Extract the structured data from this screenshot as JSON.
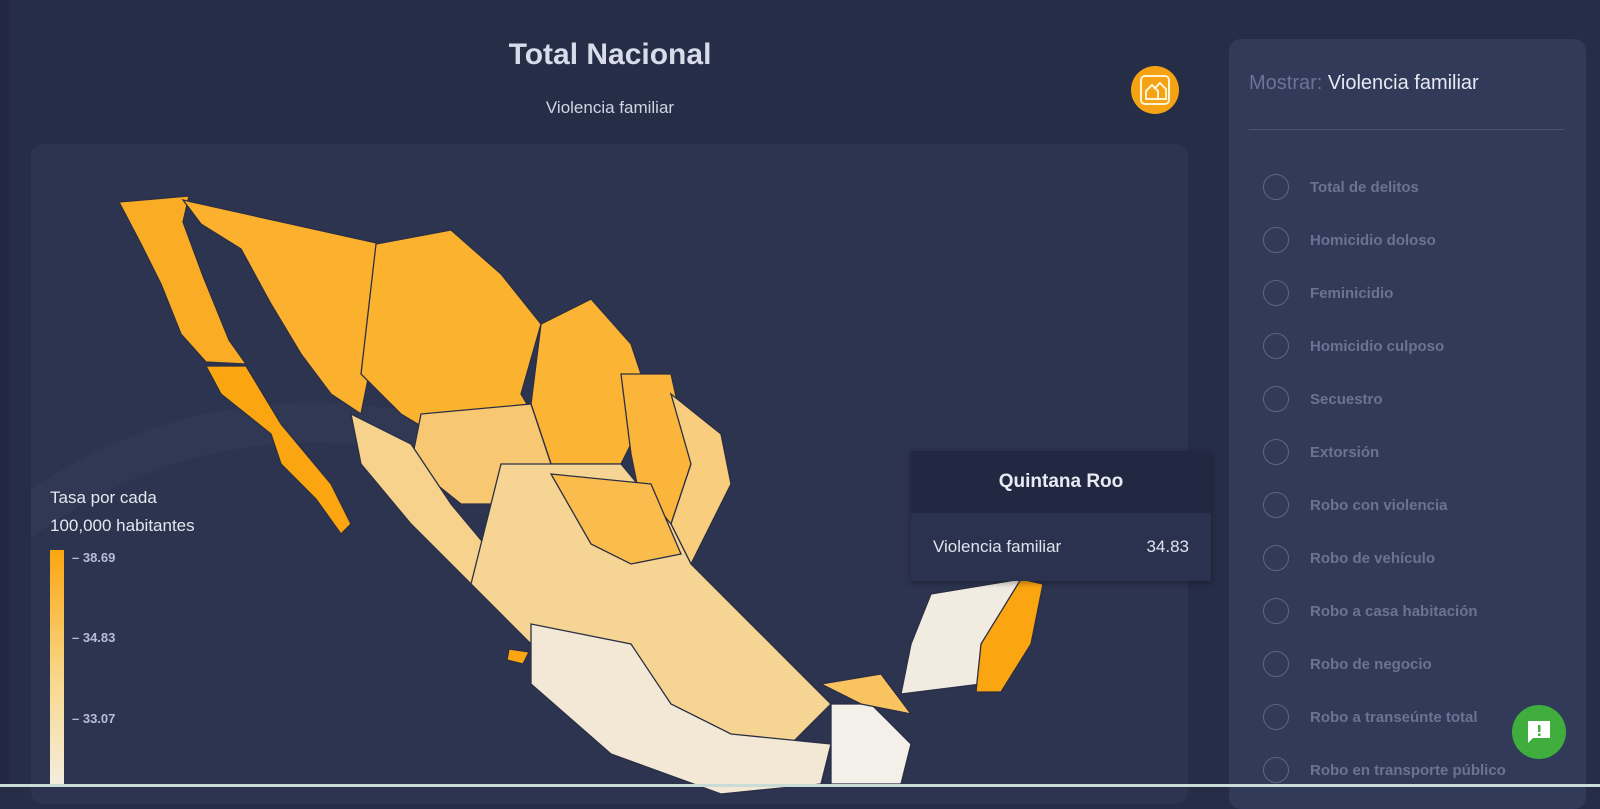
{
  "header": {
    "title": "Total Nacional",
    "subtitle": "Violencia familiar",
    "badge_icon": "family-violence-icon"
  },
  "legend": {
    "title_line1": "Tasa por cada",
    "title_line2": "100,000 habitantes",
    "ticks": [
      "38.69",
      "34.83",
      "33.07"
    ],
    "color_high": "#fba611",
    "color_low": "#f4ede0"
  },
  "tooltip": {
    "state": "Quintana Roo",
    "metric": "Violencia familiar",
    "value": "34.83"
  },
  "panel": {
    "label": "Mostrar:",
    "selected": "Violencia familiar",
    "options": [
      "Total de delitos",
      "Homicidio doloso",
      "Feminicidio",
      "Homicidio culposo",
      "Secuestro",
      "Extorsión",
      "Robo con violencia",
      "Robo de vehículo",
      "Robo a casa habitación",
      "Robo de negocio",
      "Robo a transeúnte total",
      "Robo en transporte público"
    ]
  },
  "fab": {
    "icon": "feedback-icon"
  }
}
